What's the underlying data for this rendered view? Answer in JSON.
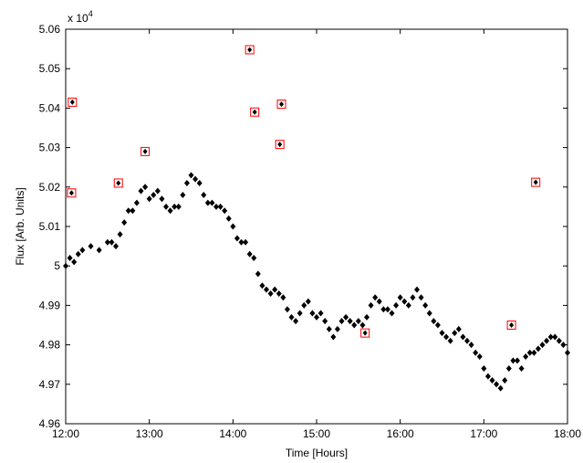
{
  "chart_data": {
    "type": "scatter",
    "x_label": "Time [Hours]",
    "y_label": "Flux [Arb. Units]",
    "y_multiplier": {
      "base": "x 10",
      "exponent": "4"
    },
    "xlim": [
      12,
      18
    ],
    "xticks": [
      {
        "value": 12,
        "label": "12:00"
      },
      {
        "value": 13,
        "label": "13:00"
      },
      {
        "value": 14,
        "label": "14:00"
      },
      {
        "value": 15,
        "label": "15:00"
      },
      {
        "value": 16,
        "label": "16:00"
      },
      {
        "value": 17,
        "label": "17:00"
      },
      {
        "value": 18,
        "label": "18:00"
      }
    ],
    "ylim": [
      4.96,
      5.06
    ],
    "yticks": [
      4.96,
      4.97,
      4.98,
      4.99,
      5,
      5.01,
      5.02,
      5.03,
      5.04,
      5.05,
      5.06
    ],
    "grid": false,
    "series": [
      {
        "color": "#000000",
        "marker": "diamond",
        "x": [
          12.0,
          12.05,
          12.1,
          12.15,
          12.2,
          12.3,
          12.4,
          12.5,
          12.55,
          12.6,
          12.65,
          12.7,
          12.75,
          12.8,
          12.85,
          12.9,
          12.95,
          13.0,
          13.05,
          13.1,
          13.15,
          13.2,
          13.25,
          13.3,
          13.35,
          13.4,
          13.45,
          13.5,
          13.55,
          13.6,
          13.65,
          13.7,
          13.75,
          13.8,
          13.85,
          13.9,
          13.95,
          14.0,
          14.05,
          14.1,
          14.15,
          14.2,
          14.25,
          14.3,
          14.35,
          14.4,
          14.45,
          14.5,
          14.55,
          14.6,
          14.65,
          14.7,
          14.75,
          14.8,
          14.85,
          14.9,
          14.95,
          15.0,
          15.05,
          15.1,
          15.15,
          15.2,
          15.25,
          15.3,
          15.35,
          15.4,
          15.45,
          15.5,
          15.55,
          15.6,
          15.65,
          15.7,
          15.75,
          15.8,
          15.85,
          15.9,
          15.95,
          16.0,
          16.05,
          16.1,
          16.15,
          16.2,
          16.25,
          16.3,
          16.35,
          16.4,
          16.45,
          16.5,
          16.55,
          16.6,
          16.65,
          16.7,
          16.75,
          16.8,
          16.85,
          16.9,
          16.95,
          17.0,
          17.05,
          17.1,
          17.15,
          17.2,
          17.25,
          17.3,
          17.35,
          17.4,
          17.45,
          17.5,
          17.55,
          17.6,
          17.65,
          17.7,
          17.75,
          17.8,
          17.85,
          17.9,
          17.95,
          18.0
        ],
        "values": [
          5.0,
          5.002,
          5.001,
          5.003,
          5.004,
          5.005,
          5.004,
          5.006,
          5.006,
          5.005,
          5.008,
          5.011,
          5.014,
          5.014,
          5.016,
          5.019,
          5.02,
          5.017,
          5.018,
          5.019,
          5.017,
          5.015,
          5.014,
          5.015,
          5.015,
          5.018,
          5.021,
          5.023,
          5.022,
          5.021,
          5.018,
          5.016,
          5.016,
          5.015,
          5.015,
          5.014,
          5.012,
          5.01,
          5.007,
          5.006,
          5.006,
          5.003,
          5.002,
          4.998,
          4.995,
          4.994,
          4.993,
          4.994,
          4.993,
          4.992,
          4.989,
          4.987,
          4.986,
          4.988,
          4.99,
          4.991,
          4.988,
          4.987,
          4.988,
          4.986,
          4.984,
          4.982,
          4.984,
          4.986,
          4.987,
          4.986,
          4.985,
          4.986,
          4.985,
          4.987,
          4.99,
          4.992,
          4.991,
          4.989,
          4.989,
          4.988,
          4.99,
          4.992,
          4.991,
          4.99,
          4.992,
          4.994,
          4.992,
          4.99,
          4.988,
          4.986,
          4.985,
          4.983,
          4.982,
          4.981,
          4.983,
          4.984,
          4.982,
          4.981,
          4.98,
          4.978,
          4.977,
          4.974,
          4.972,
          4.971,
          4.97,
          4.969,
          4.971,
          4.974,
          4.976,
          4.976,
          4.974,
          4.977,
          4.978,
          4.978,
          4.979,
          4.98,
          4.981,
          4.982,
          4.982,
          4.981,
          4.98,
          4.978
        ]
      },
      {
        "color": "#ff0000",
        "marker": "square",
        "x": [
          12.08,
          12.07,
          12.63,
          12.95,
          14.2,
          14.26,
          14.58,
          14.56,
          15.58,
          17.33,
          17.62
        ],
        "values": [
          5.0415,
          5.0185,
          5.021,
          5.029,
          5.0548,
          5.039,
          5.041,
          5.0308,
          4.983,
          4.985,
          5.0212
        ]
      }
    ]
  }
}
